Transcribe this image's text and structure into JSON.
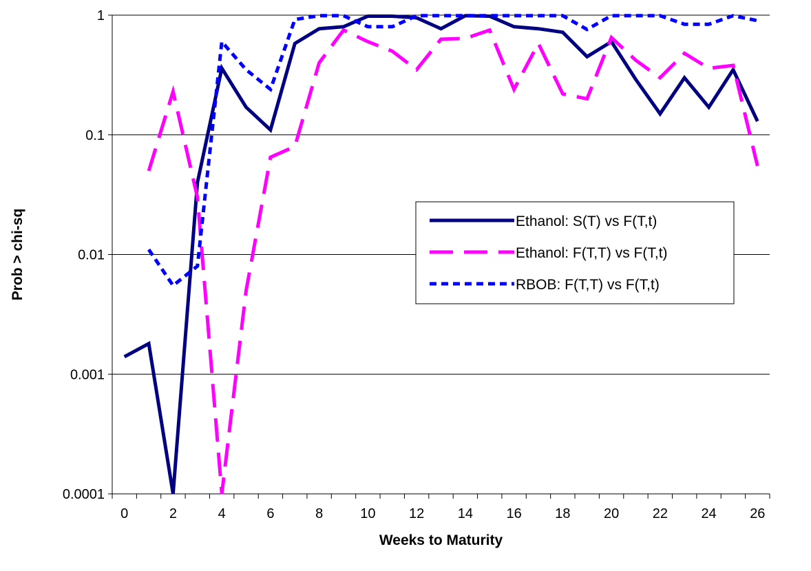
{
  "chart_data": {
    "type": "line",
    "title": "",
    "xlabel": "Weeks to Maturity",
    "ylabel": "Prob > chi-sq",
    "y_scale": "log",
    "ylim": [
      0.0001,
      1
    ],
    "xlim": [
      0,
      26
    ],
    "x_tick_labels": [
      "0",
      "2",
      "4",
      "6",
      "8",
      "10",
      "12",
      "14",
      "16",
      "18",
      "20",
      "22",
      "24",
      "26"
    ],
    "y_tick_labels": [
      "0.0001",
      "0.001",
      "0.01",
      "0.1",
      "1"
    ],
    "grid": "horizontal major gridlines on",
    "legend_position": "center-right",
    "x": [
      0,
      1,
      2,
      3,
      4,
      5,
      6,
      7,
      8,
      9,
      10,
      11,
      12,
      13,
      14,
      15,
      16,
      17,
      18,
      19,
      20,
      21,
      22,
      23,
      24,
      25,
      26
    ],
    "series": [
      {
        "name": "Ethanol: S(T) vs F(T,t)",
        "color": "#000080",
        "style": "solid",
        "values": [
          0.0014,
          0.0018,
          0.0001,
          0.04,
          0.36,
          0.17,
          0.11,
          0.58,
          0.77,
          0.8,
          0.98,
          0.98,
          0.95,
          0.77,
          0.99,
          0.98,
          0.8,
          0.77,
          0.72,
          0.45,
          0.6,
          0.29,
          0.15,
          0.3,
          0.17,
          0.35,
          0.13
        ]
      },
      {
        "name": "Ethanol: F(T,T) vs F(T,t)",
        "color": "#FF00FF",
        "style": "long-dash",
        "values": [
          null,
          0.05,
          0.23,
          0.03,
          0.0001,
          0.005,
          0.065,
          0.08,
          0.4,
          0.75,
          0.6,
          0.5,
          0.35,
          0.63,
          0.64,
          0.75,
          0.24,
          0.58,
          0.22,
          0.2,
          0.65,
          0.42,
          0.3,
          0.48,
          0.36,
          0.38,
          0.055
        ]
      },
      {
        "name": "RBOB: F(T,T) vs F(T,t)",
        "color": "#0000FF",
        "style": "short-dash",
        "values": [
          null,
          0.011,
          0.0055,
          0.008,
          0.6,
          0.35,
          0.24,
          0.92,
          0.99,
          0.99,
          0.8,
          0.8,
          0.99,
          0.99,
          0.99,
          0.99,
          0.99,
          0.99,
          0.99,
          0.76,
          0.99,
          0.99,
          0.99,
          0.84,
          0.84,
          0.99,
          0.9
        ]
      }
    ]
  }
}
